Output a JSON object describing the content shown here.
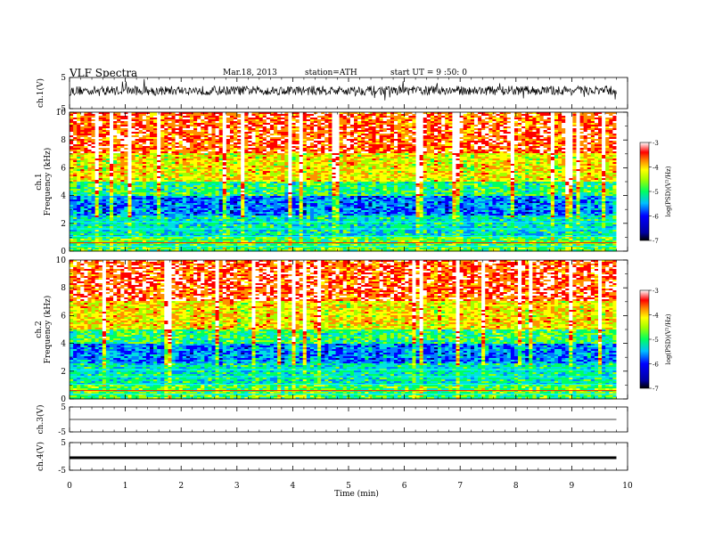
{
  "header": {
    "title": "VLF Spectra",
    "date": "Mar.18, 2013",
    "station": "station=ATH",
    "start_ut": "start UT = 9 :50: 0"
  },
  "chart_data": [
    {
      "id": "ch1-waveform",
      "type": "line",
      "ylabel": "ch.1(V)",
      "ylim": [
        -5,
        5
      ],
      "yticks": [
        -5,
        5
      ],
      "xlim": [
        0,
        10
      ],
      "data_end_min": 9.8,
      "description_values": {
        "baseline": 0.8,
        "noise_amplitude": 1.5
      }
    },
    {
      "id": "ch1-spectrogram",
      "type": "heatmap",
      "ylabel": "ch.1\nFrequency (kHz)",
      "ylim": [
        0,
        10
      ],
      "yticks": [
        0,
        2,
        4,
        6,
        8,
        10
      ],
      "xlim": [
        0,
        10
      ],
      "data_end_min": 9.8,
      "colorbar": {
        "label": "log(PSD)(V²/Hz)",
        "range": [
          -7,
          -3
        ],
        "ticks": [
          -7,
          -6,
          -5,
          -4,
          -3
        ]
      }
    },
    {
      "id": "ch2-spectrogram",
      "type": "heatmap",
      "ylabel": "ch.2\nFrequency (kHz)",
      "ylim": [
        0,
        10
      ],
      "yticks": [
        0,
        2,
        4,
        6,
        8,
        10
      ],
      "xlim": [
        0,
        10
      ],
      "data_end_min": 9.8,
      "colorbar": {
        "label": "log(PSD)(V²/Hz)",
        "range": [
          -7,
          -3
        ],
        "ticks": [
          -7,
          -6,
          -5,
          -4,
          -3
        ]
      }
    },
    {
      "id": "ch3-waveform",
      "type": "line",
      "ylabel": "ch.3(V)",
      "ylim": [
        -5,
        5
      ],
      "yticks": [
        -5,
        5
      ],
      "xlim": [
        0,
        10
      ],
      "data_end_min": 9.8,
      "description_values": {
        "baseline": 0.0
      }
    },
    {
      "id": "ch4-waveform",
      "type": "line",
      "ylabel": "ch.4(V)",
      "ylim": [
        -5,
        5
      ],
      "yticks": [
        -5,
        5
      ],
      "xlim": [
        0,
        10
      ],
      "data_end_min": 9.8,
      "description_values": {
        "baseline": -0.5
      }
    }
  ],
  "x_axis": {
    "label": "Time (min)",
    "ticks": [
      "0",
      "1",
      "2",
      "3",
      "4",
      "5",
      "6",
      "7",
      "8",
      "9",
      "10"
    ]
  },
  "colors": {
    "colormap": [
      "#000080",
      "#0000ff",
      "#0080ff",
      "#00e0e0",
      "#00ff60",
      "#a0ff00",
      "#ffff00",
      "#ff9000",
      "#ff0000",
      "#ffffff"
    ]
  }
}
